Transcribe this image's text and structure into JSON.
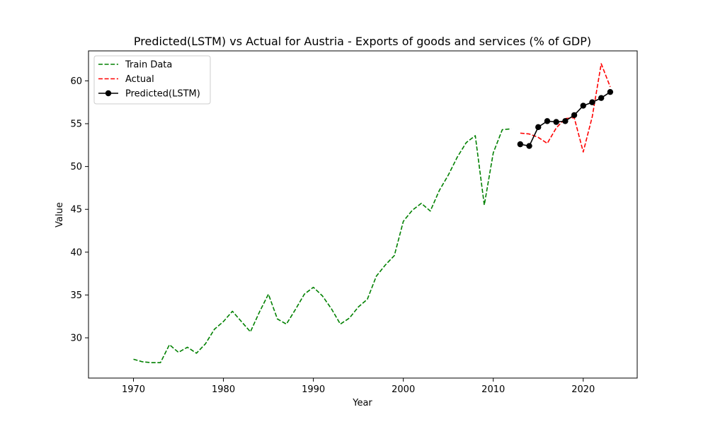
{
  "chart_data": {
    "type": "line",
    "title": "Predicted(LSTM) vs Actual for Austria - Exports of goods and services (% of GDP)",
    "xlabel": "Year",
    "ylabel": "Value",
    "xlim": [
      1965.0,
      2026.0
    ],
    "ylim": [
      25.3,
      63.5
    ],
    "xticks": [
      1970,
      1980,
      1990,
      2000,
      2010,
      2020
    ],
    "yticks": [
      30,
      35,
      40,
      45,
      50,
      55,
      60
    ],
    "grid": false,
    "legend_position": "top-left",
    "series": [
      {
        "name": "Train Data",
        "style": "dashed",
        "color": "#008000",
        "marker": "none",
        "x": [
          1970,
          1971,
          1972,
          1973,
          1974,
          1975,
          1976,
          1977,
          1978,
          1979,
          1980,
          1981,
          1982,
          1983,
          1984,
          1985,
          1986,
          1987,
          1988,
          1989,
          1990,
          1991,
          1992,
          1993,
          1994,
          1995,
          1996,
          1997,
          1998,
          1999,
          2000,
          2001,
          2002,
          2003,
          2004,
          2005,
          2006,
          2007,
          2008,
          2009,
          2010,
          2011,
          2012
        ],
        "y": [
          27.5,
          27.2,
          27.1,
          27.1,
          29.2,
          28.3,
          28.9,
          28.2,
          29.3,
          31.0,
          31.9,
          33.1,
          31.9,
          30.7,
          33.0,
          35.1,
          32.2,
          31.6,
          33.3,
          35.1,
          35.9,
          34.9,
          33.4,
          31.6,
          32.3,
          33.6,
          34.5,
          37.2,
          38.5,
          39.6,
          43.6,
          44.9,
          45.7,
          44.8,
          47.2,
          49.0,
          51.1,
          52.8,
          53.6,
          45.5,
          51.6,
          54.3,
          54.4
        ]
      },
      {
        "name": "Actual",
        "style": "dashed",
        "color": "#ff0000",
        "marker": "none",
        "x": [
          2013,
          2014,
          2015,
          2016,
          2017,
          2018,
          2019,
          2020,
          2021,
          2022,
          2023
        ],
        "y": [
          53.9,
          53.8,
          53.4,
          52.7,
          54.5,
          55.6,
          55.7,
          51.7,
          55.8,
          62.0,
          59.3
        ]
      },
      {
        "name": "Predicted(LSTM)",
        "style": "solid",
        "color": "#000000",
        "marker": "circle",
        "x": [
          2013,
          2014,
          2015,
          2016,
          2017,
          2018,
          2019,
          2020,
          2021,
          2022,
          2023
        ],
        "y": [
          52.6,
          52.4,
          54.6,
          55.3,
          55.2,
          55.3,
          56.0,
          57.1,
          57.5,
          58.0,
          58.7
        ]
      }
    ]
  }
}
